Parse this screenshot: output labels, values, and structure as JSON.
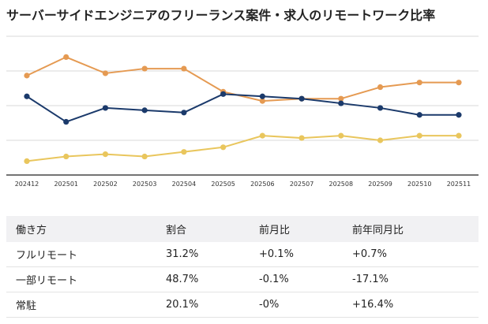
{
  "title": "サーバーサイドエンジニアのフリーランス案件・求人のリモートワーク比率",
  "chart_data": {
    "type": "line",
    "categories": [
      "202412",
      "202501",
      "202502",
      "202503",
      "202504",
      "202505",
      "202506",
      "202507",
      "202508",
      "202509",
      "202510",
      "202511"
    ],
    "ylim": [
      0,
      60
    ],
    "grid": true,
    "series": [
      {
        "name": "一部リモート",
        "color": "#e59a52",
        "values": [
          43,
          51,
          44,
          46,
          46,
          36,
          32,
          33,
          33,
          38,
          40,
          40
        ]
      },
      {
        "name": "フルリモート",
        "color": "#1b3a6b",
        "values": [
          34,
          23,
          29,
          28,
          27,
          35,
          34,
          33,
          31,
          29,
          26,
          26
        ]
      },
      {
        "name": "常駐",
        "color": "#e9c65d",
        "values": [
          6,
          8,
          9,
          8,
          10,
          12,
          17,
          16,
          17,
          15,
          17,
          17
        ]
      }
    ]
  },
  "table": {
    "headers": [
      "働き方",
      "割合",
      "前月比",
      "前年同月比"
    ],
    "rows": [
      [
        "フルリモート",
        "31.2%",
        "+0.1%",
        "+0.7%"
      ],
      [
        "一部リモート",
        "48.7%",
        "-0.1%",
        "-17.1%"
      ],
      [
        "常駐",
        "20.1%",
        "-0%",
        "+16.4%"
      ]
    ]
  }
}
